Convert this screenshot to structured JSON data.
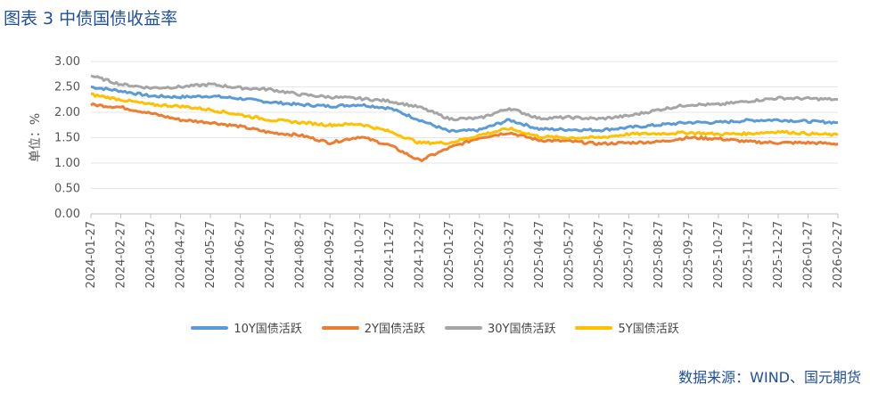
{
  "title": "图表 3 中债国债收益率",
  "source": "数据来源：WIND、国元期货",
  "chart_data": {
    "type": "line",
    "ylabel": "单位：%",
    "ylim": [
      0,
      3
    ],
    "yticks": [
      "0.00",
      "0.50",
      "1.00",
      "1.50",
      "2.00",
      "2.50",
      "3.00"
    ],
    "categories": [
      "2024-01-27",
      "2024-02-27",
      "2024-03-27",
      "2024-04-27",
      "2024-05-27",
      "2024-06-27",
      "2024-07-27",
      "2024-08-27",
      "2024-09-27",
      "2024-10-27",
      "2024-11-27",
      "2024-12-27",
      "2025-01-27",
      "2025-02-27",
      "2025-03-27",
      "2025-04-27",
      "2025-05-27",
      "2025-06-27",
      "2025-07-27",
      "2025-08-27",
      "2025-09-27",
      "2025-10-27",
      "2025-11-27",
      "2025-12-27",
      "2026-01-27",
      "2026-02-27"
    ],
    "series": [
      {
        "name": "10Y国债活跃",
        "color": "#5b9bd5",
        "values": [
          2.5,
          2.42,
          2.32,
          2.3,
          2.32,
          2.27,
          2.2,
          2.15,
          2.12,
          2.15,
          2.08,
          1.85,
          1.62,
          1.65,
          1.85,
          1.67,
          1.66,
          1.65,
          1.7,
          1.75,
          1.8,
          1.8,
          1.84,
          1.85,
          1.82,
          1.8
        ]
      },
      {
        "name": "2Y国债活跃",
        "color": "#ed7d31",
        "values": [
          2.15,
          2.1,
          1.98,
          1.85,
          1.8,
          1.72,
          1.6,
          1.55,
          1.4,
          1.52,
          1.35,
          1.05,
          1.3,
          1.5,
          1.6,
          1.45,
          1.43,
          1.38,
          1.4,
          1.42,
          1.5,
          1.48,
          1.42,
          1.4,
          1.4,
          1.38
        ]
      },
      {
        "name": "30Y国债活跃",
        "color": "#a5a5a5",
        "values": [
          2.72,
          2.55,
          2.48,
          2.5,
          2.55,
          2.48,
          2.45,
          2.35,
          2.3,
          2.27,
          2.22,
          2.1,
          1.87,
          1.88,
          2.08,
          1.88,
          1.9,
          1.87,
          1.93,
          2.05,
          2.15,
          2.15,
          2.22,
          2.28,
          2.27,
          2.25
        ]
      },
      {
        "name": "5Y国债活跃",
        "color": "#ffc000",
        "values": [
          2.35,
          2.25,
          2.15,
          2.12,
          2.05,
          1.95,
          1.85,
          1.8,
          1.75,
          1.77,
          1.62,
          1.4,
          1.4,
          1.55,
          1.68,
          1.52,
          1.5,
          1.5,
          1.57,
          1.58,
          1.6,
          1.57,
          1.58,
          1.62,
          1.58,
          1.55
        ]
      }
    ]
  }
}
